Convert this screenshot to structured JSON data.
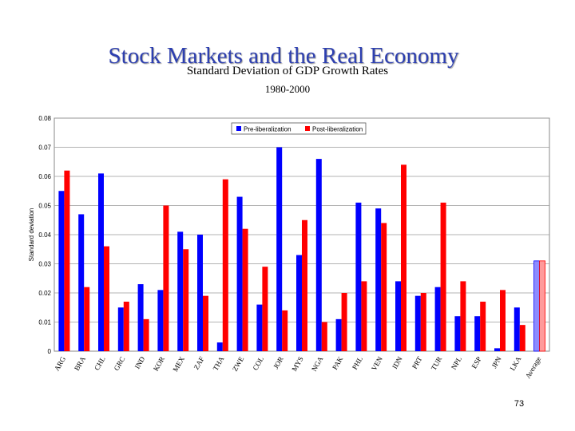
{
  "slide": {
    "title": "Stock Markets and the Real Economy",
    "page_number": "73"
  },
  "colors": {
    "pre": "#0000ff",
    "post": "#ff0000",
    "title": "#2d3fb0"
  },
  "chart_data": {
    "type": "bar",
    "title": "Standard Deviation of GDP Growth Rates",
    "subtitle": "1980-2000",
    "xlabel": "",
    "ylabel": "Standard deviation",
    "ylim": [
      0,
      0.08
    ],
    "yticks": [
      "0",
      "0.01",
      "0.02",
      "0.03",
      "0.04",
      "0.05",
      "0.06",
      "0.07",
      "0.08"
    ],
    "grid": true,
    "legend": "top-right",
    "categories": [
      "ARG",
      "BRA",
      "CHL",
      "GRC",
      "IND",
      "KOR",
      "MEX",
      "ZAF",
      "THA",
      "ZWE",
      "COL",
      "JOR",
      "MYS",
      "NGA",
      "PAK",
      "PHL",
      "VEN",
      "IDN",
      "PRT",
      "TUR",
      "NPL",
      "ESP",
      "JPN",
      "LKA",
      "Average"
    ],
    "series": [
      {
        "name": "Pre-liberalization",
        "color": "#0000ff",
        "values": [
          0.055,
          0.047,
          0.061,
          0.015,
          0.023,
          0.021,
          0.041,
          0.04,
          0.003,
          0.053,
          0.016,
          0.07,
          0.033,
          0.066,
          0.011,
          0.051,
          0.049,
          0.024,
          0.019,
          0.022,
          0.012,
          0.012,
          0.001,
          0.015,
          0.031
        ]
      },
      {
        "name": "Post-liberalization",
        "color": "#ff0000",
        "values": [
          0.062,
          0.022,
          0.036,
          0.017,
          0.011,
          0.05,
          0.035,
          0.019,
          0.059,
          0.042,
          0.029,
          0.014,
          0.045,
          0.01,
          0.02,
          0.024,
          0.044,
          0.064,
          0.02,
          0.051,
          0.024,
          0.017,
          0.021,
          0.009,
          0.031
        ]
      }
    ]
  }
}
